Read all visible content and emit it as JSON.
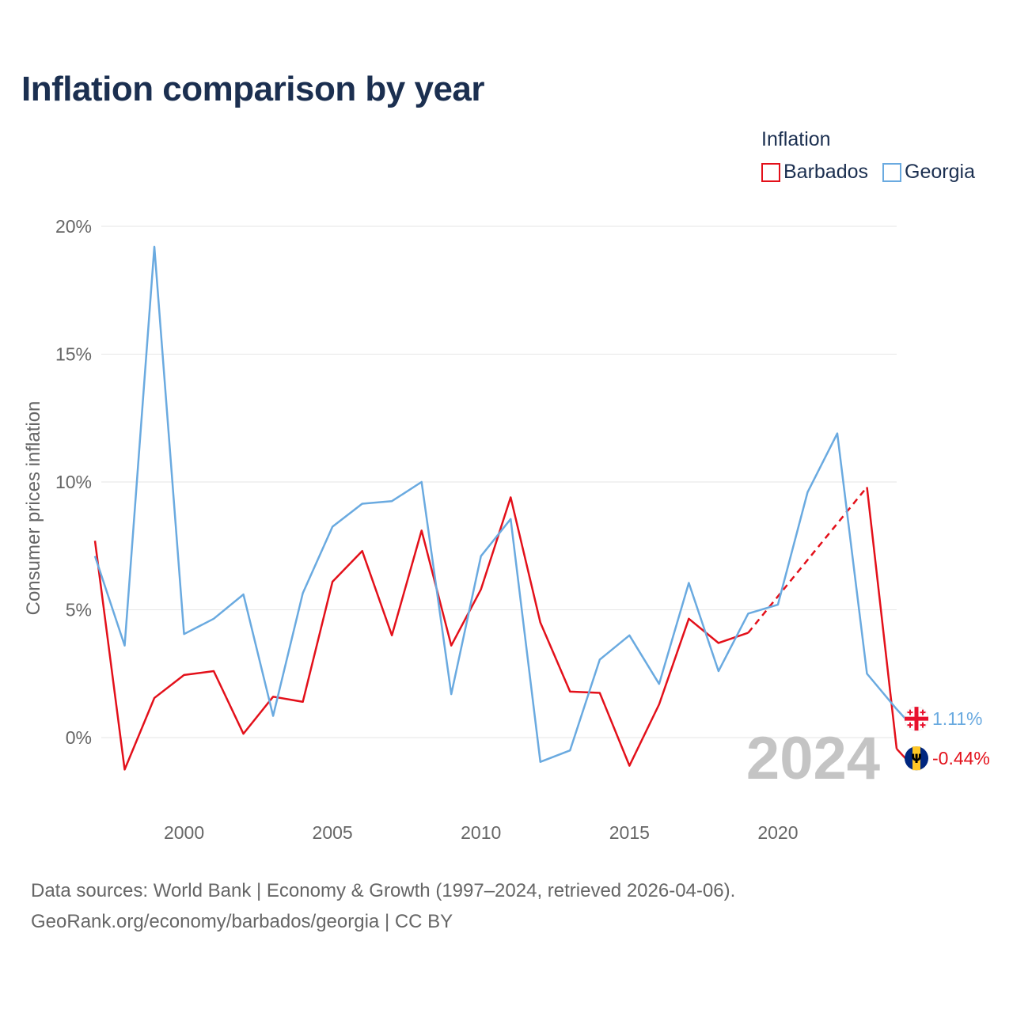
{
  "title": "Inflation comparison by year",
  "legend": {
    "title": "Inflation",
    "items": [
      {
        "label": "Barbados",
        "color": "#e3101a"
      },
      {
        "label": "Georgia",
        "color": "#6aaae0"
      }
    ]
  },
  "source": {
    "line1": "Data sources: World Bank | Economy & Growth (1997–2024, retrieved 2026-04-06).",
    "line2": "GeoRank.org/economy/barbados/georgia | CC BY"
  },
  "year_watermark": "2024",
  "chart_data": {
    "type": "line",
    "title": "Inflation comparison by year",
    "xlabel": "",
    "ylabel": "Consumer prices inflation",
    "xlim": [
      1997,
      2024
    ],
    "ylim": [
      -2,
      20
    ],
    "yticks": [
      0,
      5,
      10,
      15,
      20
    ],
    "ytick_labels": [
      "0%",
      "5%",
      "10%",
      "15%",
      "20%"
    ],
    "xticks": [
      2000,
      2005,
      2010,
      2015,
      2020
    ],
    "xtick_labels": [
      "2000",
      "2005",
      "2010",
      "2015",
      "2020"
    ],
    "grid": true,
    "legend_position": "top-right",
    "x": [
      1997,
      1998,
      1999,
      2000,
      2001,
      2002,
      2003,
      2004,
      2005,
      2006,
      2007,
      2008,
      2009,
      2010,
      2011,
      2012,
      2013,
      2014,
      2015,
      2016,
      2017,
      2018,
      2019,
      2020,
      2021,
      2022,
      2023,
      2024
    ],
    "series": [
      {
        "name": "Barbados",
        "color": "#e3101a",
        "values": [
          7.7,
          -1.25,
          1.55,
          2.45,
          2.6,
          0.15,
          1.6,
          1.4,
          6.1,
          7.3,
          4.0,
          8.1,
          3.6,
          5.8,
          9.4,
          4.5,
          1.8,
          1.75,
          -1.1,
          1.3,
          4.65,
          3.7,
          4.1,
          null,
          null,
          null,
          9.8,
          -0.44
        ],
        "gap_from": 2019,
        "gap_to": 2023,
        "end_label": "-0.44%",
        "flag_icon": "barbados-flag-icon"
      },
      {
        "name": "Georgia",
        "color": "#6aaae0",
        "values": [
          7.1,
          3.6,
          19.2,
          4.05,
          4.65,
          5.6,
          0.85,
          5.65,
          8.25,
          9.15,
          9.25,
          10.0,
          1.7,
          7.1,
          8.55,
          -0.95,
          -0.5,
          3.05,
          4.0,
          2.1,
          6.05,
          2.6,
          4.85,
          5.2,
          9.6,
          11.9,
          2.5,
          1.11
        ],
        "end_label": "1.11%",
        "flag_icon": "georgia-flag-icon"
      }
    ]
  }
}
